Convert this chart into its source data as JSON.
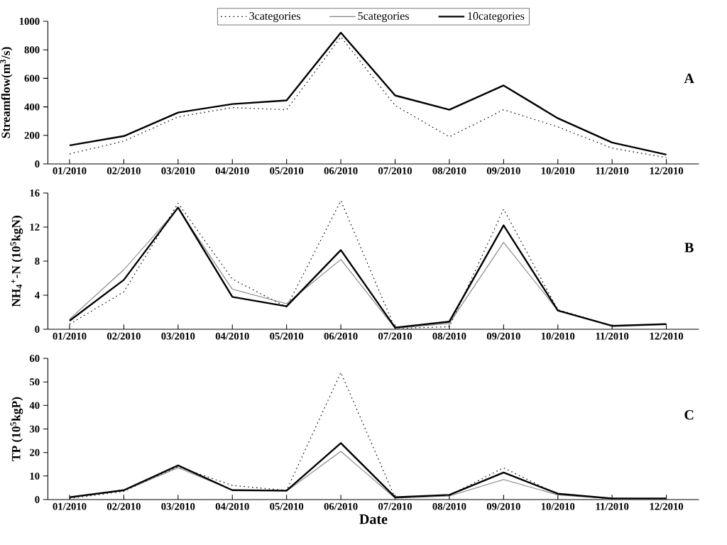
{
  "chart_data": [
    {
      "type": "line",
      "categories": [
        "01/2010",
        "02/2010",
        "03/2010",
        "04/2010",
        "05/2010",
        "06/2010",
        "07/2010",
        "08/2010",
        "09/2010",
        "10/2010",
        "11/2010",
        "12/2010"
      ],
      "ylabel": "Streamflow(m$^{3}$/s)",
      "ylim": [
        0,
        1000
      ],
      "yticks": [
        0,
        200,
        400,
        600,
        800,
        1000
      ],
      "legend": "top",
      "grid": false,
      "marker": "none",
      "annotations": [
        "A"
      ],
      "series": [
        {
          "name": "3categories",
          "color": "#000000",
          "line_style": "dotted",
          "values": [
            70,
            160,
            330,
            395,
            380,
            890,
            410,
            190,
            380,
            260,
            110,
            45
          ]
        },
        {
          "name": "5categories",
          "color": "#808080",
          "line_style": "solid",
          "values": [
            null,
            null,
            null,
            null,
            null,
            null,
            null,
            null,
            null,
            null,
            null,
            null
          ]
        },
        {
          "name": "10categories",
          "color": "#000000",
          "line_style": "solid",
          "values": [
            130,
            195,
            360,
            420,
            445,
            920,
            480,
            380,
            550,
            320,
            150,
            65
          ]
        }
      ]
    },
    {
      "type": "line",
      "categories": [
        "01/2010",
        "02/2010",
        "03/2010",
        "04/2010",
        "05/2010",
        "06/2010",
        "07/2010",
        "08/2010",
        "09/2010",
        "10/2010",
        "11/2010",
        "12/2010"
      ],
      "ylabel": "NH$_{4}$$^{+}$-N (10$^{5}$kgN)",
      "ylim": [
        0,
        16
      ],
      "yticks": [
        0,
        4,
        8,
        12,
        16
      ],
      "grid": false,
      "marker": "none",
      "annotations": [
        "B"
      ],
      "series": [
        {
          "color": "#000000",
          "line_style": "dotted",
          "values": [
            0.6,
            4.4,
            14.8,
            5.9,
            2.6,
            15.1,
            0.1,
            0.3,
            14.1,
            2.3,
            0.4,
            0.6
          ]
        },
        {
          "color": "#808080",
          "line_style": "solid",
          "values": [
            1.2,
            7.0,
            14.2,
            4.7,
            3.0,
            8.2,
            0.1,
            0.7,
            10.2,
            2.2,
            0.4,
            0.6
          ]
        },
        {
          "color": "#000000",
          "line_style": "solid",
          "values": [
            1.0,
            5.8,
            14.3,
            3.8,
            2.7,
            9.3,
            0.2,
            0.9,
            12.2,
            2.2,
            0.4,
            0.6
          ]
        }
      ]
    },
    {
      "type": "line",
      "categories": [
        "01/2010",
        "02/2010",
        "03/2010",
        "04/2010",
        "05/2010",
        "06/2010",
        "07/2010",
        "08/2010",
        "09/2010",
        "10/2010",
        "11/2010",
        "12/2010"
      ],
      "xlabel": "Date",
      "ylabel": "TP (10$^{5}$kgP)",
      "ylim": [
        0,
        60
      ],
      "yticks": [
        0,
        10,
        20,
        30,
        40,
        50,
        60
      ],
      "grid": false,
      "marker": "none",
      "annotations": [
        "C"
      ],
      "series": [
        {
          "color": "#000000",
          "line_style": "dotted",
          "values": [
            0.5,
            3.5,
            14.0,
            6.0,
            3.9,
            54,
            0.8,
            1.8,
            13.5,
            2.2,
            0.4,
            0.4
          ]
        },
        {
          "color": "#808080",
          "line_style": "solid",
          "values": [
            0.8,
            3.8,
            13.5,
            4.0,
            3.6,
            20.5,
            0.6,
            1.5,
            8.5,
            2.0,
            0.3,
            0.3
          ]
        },
        {
          "color": "#000000",
          "line_style": "solid",
          "values": [
            1.0,
            4.0,
            14.5,
            4.0,
            3.8,
            24,
            1.0,
            2.0,
            11.5,
            2.5,
            0.5,
            0.5
          ]
        }
      ]
    }
  ]
}
